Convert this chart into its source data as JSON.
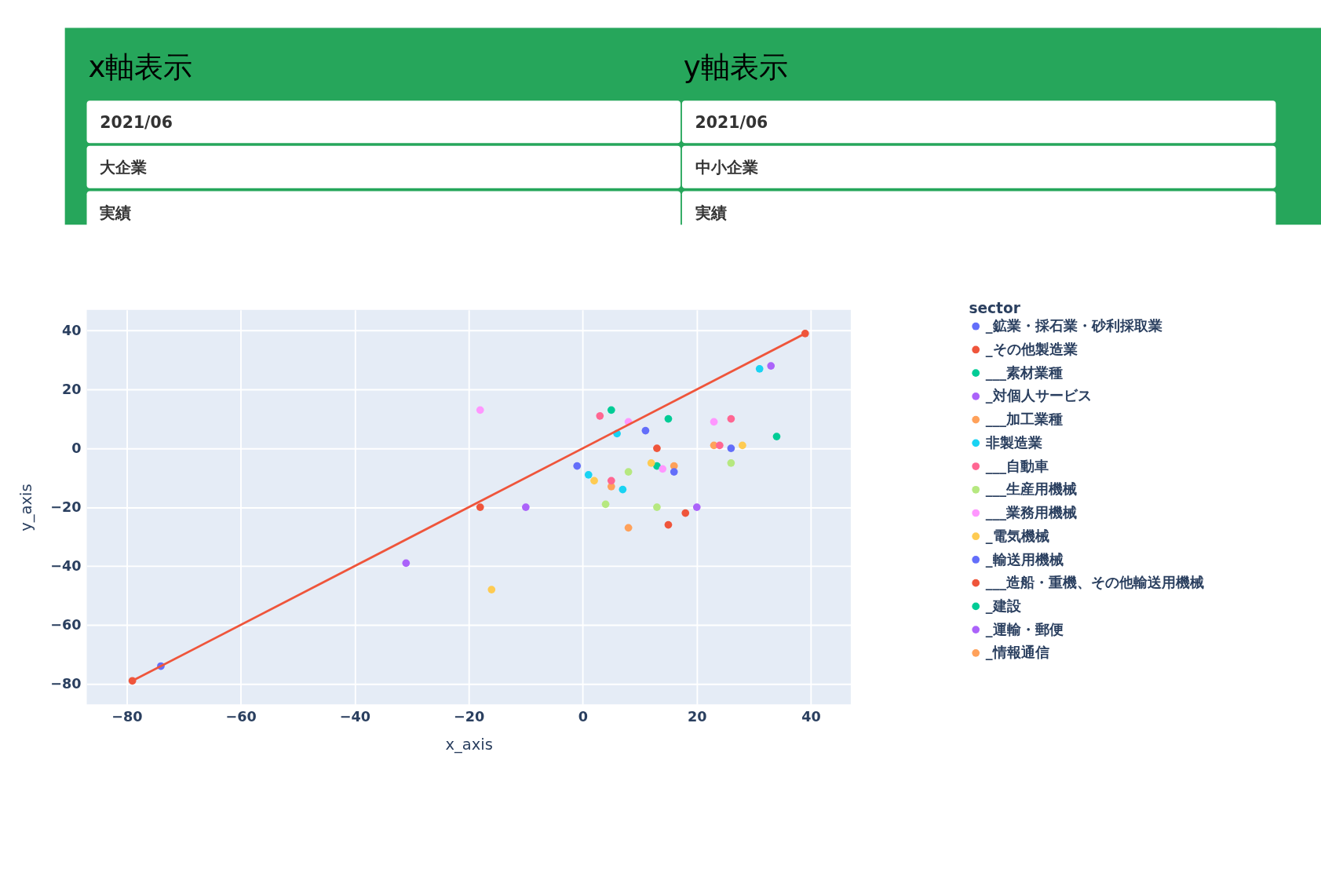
{
  "chart_data": {
    "type": "scatter",
    "xlabel": "x_axis",
    "ylabel": "y_axis",
    "legend_title": "sector",
    "legend": "right",
    "grid": true,
    "marker": "circle",
    "xlim": [
      -87,
      47
    ],
    "ylim": [
      -87,
      47
    ],
    "xticks": [
      -80,
      -60,
      -40,
      -20,
      0,
      20,
      40
    ],
    "yticks": [
      -80,
      -60,
      -40,
      -20,
      0,
      20,
      40
    ],
    "annotations": [
      "x軸表示",
      "y軸表示",
      "2021/06",
      "大企業",
      "実績",
      "2021/06",
      "中小企業",
      "実績"
    ],
    "series": [
      {
        "name": "_鉱業・採石業・砂利採取業",
        "color": "#636efa",
        "x": [
          -74
        ],
        "values": [
          -74
        ]
      },
      {
        "name": "_その他製造業",
        "color": "#ef553b",
        "x": [
          -18
        ],
        "values": [
          -20
        ]
      },
      {
        "name": "___素材業種",
        "color": "#00cc96",
        "x": [
          5
        ],
        "values": [
          13
        ]
      },
      {
        "name": "_対個人サービス",
        "color": "#ab63fa",
        "x": [
          -31
        ],
        "values": [
          -39
        ]
      },
      {
        "name": "___加工業種",
        "color": "#ffa15a",
        "x": [
          5
        ],
        "values": [
          -13
        ]
      },
      {
        "name": "非製造業",
        "color": "#19d3f3",
        "x": [
          6
        ],
        "values": [
          5
        ]
      },
      {
        "name": "___自動車",
        "color": "#ff6692",
        "x": [
          3
        ],
        "values": [
          11
        ]
      },
      {
        "name": "___生産用機械",
        "color": "#b6e880",
        "x": [
          8
        ],
        "values": [
          -8
        ]
      },
      {
        "name": "___業務用機械",
        "color": "#ff97ff",
        "x": [
          -18
        ],
        "values": [
          13
        ]
      },
      {
        "name": "_電気機械",
        "color": "#fecb52",
        "x": [
          -16
        ],
        "values": [
          -48
        ]
      },
      {
        "name": "_輸送用機械",
        "color": "#636efa",
        "x": [
          11
        ],
        "values": [
          6
        ]
      },
      {
        "name": "___造船・重機、その他輸送用機械",
        "color": "#ef553b",
        "x": [
          13
        ],
        "values": [
          0
        ]
      },
      {
        "name": "_建設",
        "color": "#00cc96",
        "x": [
          15
        ],
        "values": [
          10
        ]
      },
      {
        "name": "_運輸・郵便",
        "color": "#ab63fa",
        "x": [
          -10
        ],
        "values": [
          -20
        ]
      },
      {
        "name": "_情報通信",
        "color": "#ffa15a",
        "x": [
          8
        ],
        "values": [
          -27
        ]
      },
      {
        "color": "#19d3f3",
        "x": [
          1
        ],
        "values": [
          -9
        ]
      },
      {
        "color": "#ff6692",
        "x": [
          5
        ],
        "values": [
          -11
        ]
      },
      {
        "color": "#b6e880",
        "x": [
          4
        ],
        "values": [
          -19
        ]
      },
      {
        "color": "#ff97ff",
        "x": [
          8
        ],
        "values": [
          9
        ]
      },
      {
        "color": "#fecb52",
        "x": [
          2
        ],
        "values": [
          -11
        ]
      },
      {
        "color": "#636efa",
        "x": [
          -1
        ],
        "values": [
          -6
        ]
      },
      {
        "color": "#ef553b",
        "x": [
          15
        ],
        "values": [
          -26
        ]
      },
      {
        "color": "#00cc96",
        "x": [
          13
        ],
        "values": [
          -6
        ]
      },
      {
        "color": "#ab63fa",
        "x": [
          20
        ],
        "values": [
          -20
        ]
      },
      {
        "color": "#ffa15a",
        "x": [
          16
        ],
        "values": [
          -6
        ]
      },
      {
        "color": "#19d3f3",
        "x": [
          7
        ],
        "values": [
          -14
        ]
      },
      {
        "color": "#ff6692",
        "x": [
          26
        ],
        "values": [
          10
        ]
      },
      {
        "color": "#b6e880",
        "x": [
          13
        ],
        "values": [
          -20
        ]
      },
      {
        "color": "#ff97ff",
        "x": [
          14
        ],
        "values": [
          -7
        ]
      },
      {
        "color": "#fecb52",
        "x": [
          12
        ],
        "values": [
          -5
        ]
      },
      {
        "color": "#636efa",
        "x": [
          16
        ],
        "values": [
          -8
        ]
      },
      {
        "color": "#ef553b",
        "x": [
          18
        ],
        "values": [
          -22
        ]
      },
      {
        "color": "#00cc96",
        "x": [
          34
        ],
        "values": [
          4
        ]
      },
      {
        "color": "#ab63fa",
        "x": [
          33
        ],
        "values": [
          28
        ]
      },
      {
        "color": "#ffa15a",
        "x": [
          23
        ],
        "values": [
          1
        ]
      },
      {
        "color": "#19d3f3",
        "x": [
          31
        ],
        "values": [
          27
        ]
      },
      {
        "color": "#ff6692",
        "x": [
          24
        ],
        "values": [
          1
        ]
      },
      {
        "color": "#b6e880",
        "x": [
          26
        ],
        "values": [
          -5
        ]
      },
      {
        "color": "#ff97ff",
        "x": [
          23
        ],
        "values": [
          9
        ]
      },
      {
        "color": "#fecb52",
        "x": [
          28
        ],
        "values": [
          1
        ]
      },
      {
        "color": "#636efa",
        "x": [
          26
        ],
        "values": [
          0
        ]
      },
      {
        "type": "line",
        "color": "#ef553b",
        "x": [
          -79,
          39
        ],
        "values": [
          -79,
          39
        ]
      }
    ]
  }
}
